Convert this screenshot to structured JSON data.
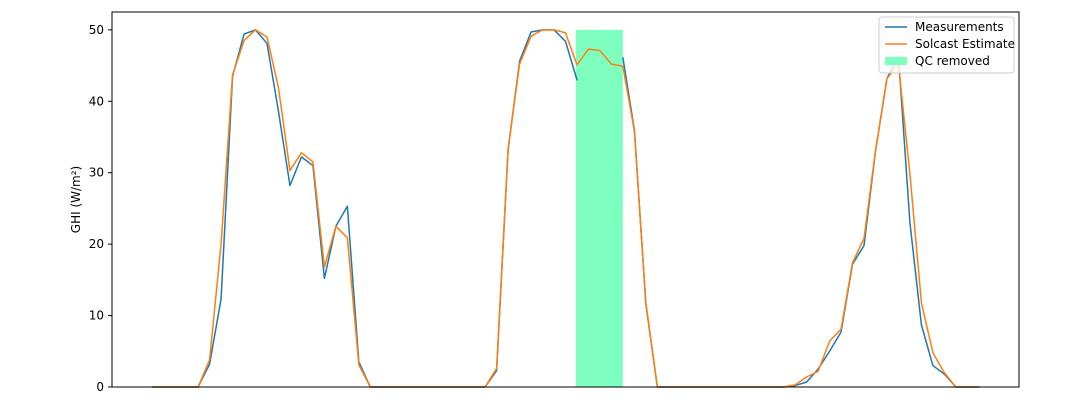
{
  "chart_data": {
    "type": "line",
    "title": "",
    "xlabel": "",
    "ylabel": "GHI (W/m²)",
    "ylim": [
      0,
      52.5
    ],
    "xlim": [
      -3.5,
      75.5
    ],
    "yticks": [
      0,
      10,
      20,
      30,
      40,
      50
    ],
    "grid": false,
    "legend_position": "top-right",
    "series": [
      {
        "name": "Measurements",
        "color": "#1f77b4",
        "x": [
          0,
          1,
          2,
          3,
          4,
          5,
          6,
          7,
          8,
          9,
          10,
          11,
          12,
          13,
          14,
          15,
          16,
          17,
          18,
          19,
          20,
          21,
          22,
          23,
          24,
          25,
          26,
          27,
          28,
          29,
          30,
          31,
          32,
          33,
          34,
          35,
          36,
          37,
          38,
          39,
          40,
          41,
          42,
          43,
          44,
          45,
          46,
          47,
          48,
          49,
          50,
          51,
          52,
          53,
          54,
          55,
          56,
          57,
          58,
          59,
          60,
          61,
          62,
          63,
          64,
          65,
          66,
          67,
          68,
          69,
          70,
          71,
          72
        ],
        "y": [
          0,
          0,
          0,
          0,
          0,
          3.2,
          12.3,
          43.5,
          49.4,
          50,
          48.1,
          38.6,
          28.2,
          32.2,
          31,
          15.2,
          22.5,
          25.3,
          3.5,
          0,
          0,
          0,
          0,
          0,
          0,
          0,
          0,
          0,
          0,
          0,
          2.3,
          33.2,
          45.6,
          49.7,
          50,
          50,
          48.4,
          43,
          null,
          null,
          null,
          46.1,
          36,
          11.6,
          0,
          0,
          0,
          0,
          0,
          0,
          0,
          0,
          0,
          0,
          0,
          0,
          0.2,
          0.7,
          2.5,
          5,
          7.7,
          17.2,
          19.8,
          33,
          43.2,
          46.3,
          23,
          8.7,
          3,
          1.8,
          0,
          0,
          0
        ]
      },
      {
        "name": "Solcast Estimate",
        "color": "#ff7f0e",
        "x": [
          0,
          1,
          2,
          3,
          4,
          5,
          6,
          7,
          8,
          9,
          10,
          11,
          12,
          13,
          14,
          15,
          16,
          17,
          18,
          19,
          20,
          21,
          22,
          23,
          24,
          25,
          26,
          27,
          28,
          29,
          30,
          31,
          32,
          33,
          34,
          35,
          36,
          37,
          38,
          39,
          40,
          41,
          42,
          43,
          44,
          45,
          46,
          47,
          48,
          49,
          50,
          51,
          52,
          53,
          54,
          55,
          56,
          57,
          58,
          59,
          60,
          61,
          62,
          63,
          64,
          65,
          66,
          67,
          68,
          69,
          70,
          71,
          72
        ],
        "y": [
          0,
          0,
          0,
          0,
          0,
          3.8,
          20,
          43.7,
          48.5,
          50,
          49,
          41.9,
          30.3,
          32.8,
          31.5,
          16.8,
          22.5,
          20.9,
          3.1,
          0,
          0,
          0,
          0,
          0,
          0,
          0,
          0,
          0,
          0,
          0,
          2.6,
          33.3,
          45.2,
          49.1,
          50,
          50,
          49.6,
          45.1,
          47.3,
          47.1,
          45.2,
          44.9,
          35.8,
          11.8,
          0,
          0,
          0,
          0,
          0,
          0,
          0,
          0,
          0,
          0,
          0,
          0,
          0.3,
          1.4,
          2.2,
          6.4,
          8.1,
          17.4,
          20.8,
          33.1,
          43.2,
          45.2,
          29.8,
          11.8,
          4.8,
          2,
          0,
          0,
          0
        ]
      }
    ],
    "shaded_regions": [
      {
        "name": "QC removed",
        "color": "#7fffbf",
        "x_start": 36.9,
        "x_end": 41.0,
        "y_start": 0,
        "y_end": 50
      }
    ]
  }
}
